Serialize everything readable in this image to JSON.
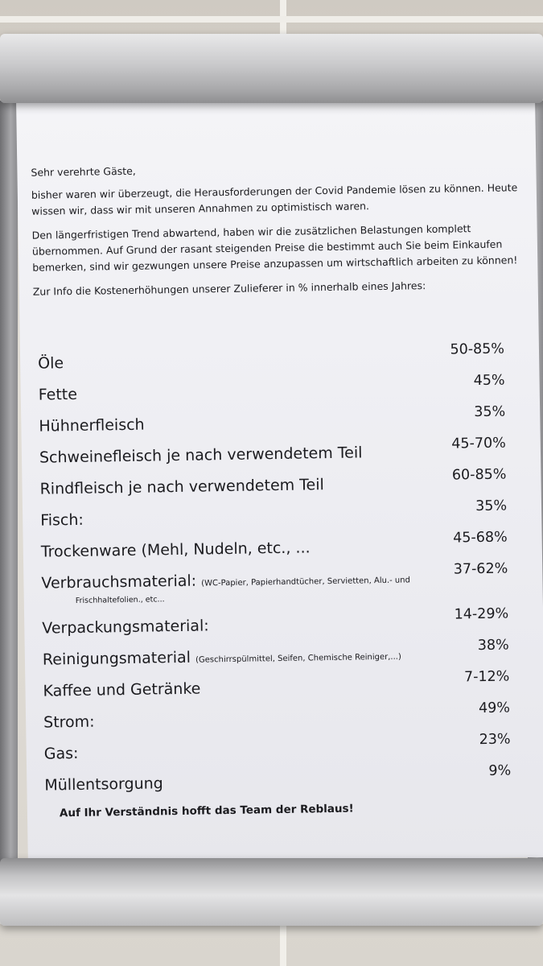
{
  "notice": {
    "greeting": "Sehr verehrte Gäste,",
    "paragraph1": "bisher waren wir überzeugt, die Herausforderungen der Covid Pandemie lösen zu können. Heute wissen wir, dass wir mit unseren Annahmen zu optimistisch waren.",
    "paragraph2": "Den längerfristigen Trend abwartend, haben wir die zusätzlichen Belastungen komplett übernommen. Auf Grund der rasant steigenden Preise die bestimmt auch Sie beim Einkaufen bemerken, sind wir gezwungen unsere Preise anzupassen um wirtschaftlich arbeiten zu können!",
    "info_line": "Zur Info die Kostenerhöhungen unserer Zulieferer in % innerhalb eines Jahres:",
    "items": [
      {
        "name": "Öle",
        "detail": "",
        "percent": "50-85%"
      },
      {
        "name": "Fette",
        "detail": "",
        "percent": "45%"
      },
      {
        "name": "Hühnerfleisch",
        "detail": "",
        "percent": "35%"
      },
      {
        "name": "Schweinefleisch je nach verwendetem Teil",
        "detail": "",
        "percent": "45-70%"
      },
      {
        "name": "Rindfleisch je nach verwendetem Teil",
        "detail": "",
        "percent": "60-85%"
      },
      {
        "name": "Fisch:",
        "detail": "",
        "percent": "35%"
      },
      {
        "name": "Trockenware (Mehl, Nudeln, etc., ...",
        "detail": "",
        "percent": "45-68%"
      },
      {
        "name": "Verbrauchsmaterial:",
        "detail": "(WC-Papier, Papierhandtücher, Servietten, Alu.- und",
        "sub": "Frischhaltefolien., etc...",
        "percent": "37-62%"
      },
      {
        "name": "Verpackungsmaterial:",
        "detail": "",
        "percent": "14-29%"
      },
      {
        "name": "Reinigungsmaterial",
        "detail": "(Geschirrspülmittel, Seifen, Chemische Reiniger,...)",
        "percent": "38%"
      },
      {
        "name": "Kaffee und Getränke",
        "detail": "",
        "percent": "7-12%"
      },
      {
        "name": "Strom:",
        "detail": "",
        "percent": "49%"
      },
      {
        "name": "Gas:",
        "detail": "",
        "percent": "23%"
      },
      {
        "name": "Müllentsorgung",
        "detail": "",
        "percent": "9%"
      }
    ],
    "closing": "Auf Ihr Verständnis hofft das Team der Reblaus!"
  }
}
